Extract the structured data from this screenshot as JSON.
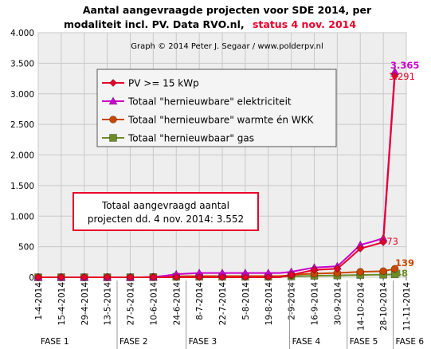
{
  "title": {
    "line1": "Aantal aangevraagde projecten voor SDE 2014, per",
    "line2_main": "modaliteit incl. PV. Data RVO.nl,",
    "line2_status": "status 4 nov. 2014"
  },
  "credit": "Graph © 2014 Peter J. Segaar / www.polderpv.nl",
  "summary_box": {
    "line1": "Totaal aangevraagd aantal",
    "line2": "projecten dd. 4 nov. 2014: 3.552"
  },
  "colors": {
    "pv": "#e8002a",
    "totaal_elektriciteit": "#cc00cc",
    "warmte_wkk": "#c84800",
    "gas": "#6e8c28",
    "plot_bg": "#eeeeee",
    "grid": "#c8c8c8",
    "title_status": "#e8002a",
    "summary_border": "#e8002a"
  },
  "chart_data": {
    "type": "line",
    "xlabel": "",
    "ylabel": "",
    "ylim": [
      0,
      4000
    ],
    "yticks": [
      0,
      500,
      1000,
      1500,
      2000,
      2500,
      3000,
      3500,
      4000
    ],
    "ytick_labels": [
      "0",
      "500",
      "1.000",
      "1.500",
      "2.000",
      "2.500",
      "3.000",
      "3.500",
      "4.000"
    ],
    "grid": true,
    "legend_position": "upper-left inside plot",
    "x": [
      "1-4-2014",
      "8-4-2014",
      "15-4-2014",
      "22-4-2014",
      "29-4-2014",
      "6-5-2014",
      "13-5-2014",
      "20-5-2014",
      "27-5-2014",
      "3-6-2014",
      "10-6-2014",
      "17-6-2014",
      "24-6-2014",
      "1-7-2014",
      "8-7-2014",
      "15-7-2014",
      "22-7-2014",
      "29-7-2014",
      "5-8-2014",
      "12-8-2014",
      "19-8-2014",
      "26-8-2014",
      "2-9-2014",
      "9-9-2014",
      "16-9-2014",
      "23-9-2014",
      "30-9-2014",
      "7-10-2014",
      "14-10-2014",
      "21-10-2014",
      "28-10-2014",
      "4-11-2014",
      "11-11-2014"
    ],
    "xtick_labels": [
      "1-4-2014",
      "15-4-2014",
      "29-4-2014",
      "13-5-2014",
      "27-5-2014",
      "10-6-2014",
      "24-6-2014",
      "8-7-2014",
      "22-7-2014",
      "5-8-2014",
      "19-8-2014",
      "2-9-2014",
      "16-9-2014",
      "30-9-2014",
      "14-10-2014",
      "28-10-2014",
      "11-11-2014"
    ],
    "series": [
      {
        "name": "PV >= 15 kWp",
        "color_key": "pv",
        "marker": "diamond",
        "values": [
          0,
          0,
          0,
          0,
          0,
          0,
          0,
          0,
          0,
          0,
          0,
          0,
          0,
          0,
          0,
          0,
          0,
          0,
          0,
          0,
          0,
          0,
          40,
          80,
          120,
          130,
          140,
          300,
          470,
          520,
          573,
          3291,
          null
        ]
      },
      {
        "name": "Totaal \"hernieuwbare\" elektriciteit",
        "color_key": "totaal_elektriciteit",
        "marker": "triangle",
        "values": [
          0,
          0,
          0,
          0,
          0,
          0,
          0,
          0,
          0,
          0,
          5,
          25,
          50,
          60,
          70,
          70,
          70,
          70,
          70,
          70,
          70,
          70,
          90,
          125,
          160,
          170,
          180,
          350,
          530,
          580,
          640,
          3365,
          null
        ]
      },
      {
        "name": "Totaal \"hernieuwbare\" warmte én WKK",
        "color_key": "warmte_wkk",
        "marker": "circle",
        "values": [
          0,
          0,
          0,
          0,
          0,
          0,
          0,
          0,
          0,
          0,
          5,
          10,
          15,
          20,
          20,
          20,
          20,
          20,
          20,
          20,
          20,
          20,
          35,
          50,
          60,
          65,
          70,
          80,
          90,
          95,
          100,
          139,
          null
        ]
      },
      {
        "name": "Totaal \"hernieuwbaar\" gas",
        "color_key": "gas",
        "marker": "square",
        "values": [
          0,
          0,
          0,
          0,
          0,
          0,
          0,
          0,
          0,
          0,
          2,
          5,
          8,
          10,
          10,
          10,
          10,
          10,
          10,
          10,
          10,
          10,
          15,
          20,
          25,
          28,
          30,
          35,
          38,
          40,
          42,
          48,
          null
        ]
      }
    ],
    "end_labels": [
      {
        "text": "3.365",
        "series": 1
      },
      {
        "text": "3.291",
        "series": 0
      },
      {
        "text": "573",
        "series": 0
      },
      {
        "text": "139",
        "series": 2
      },
      {
        "text": "48",
        "series": 3
      }
    ],
    "phases": [
      {
        "label": "FASE 1",
        "start": "1-4-2014"
      },
      {
        "label": "FASE 2",
        "start": "19-5-2014"
      },
      {
        "label": "FASE 3",
        "start": "30-6-2014"
      },
      {
        "label": "FASE 4",
        "start": "1-9-2014"
      },
      {
        "label": "FASE 5",
        "start": "6-10-2014"
      },
      {
        "label": "FASE 6",
        "start": "3-11-2014"
      }
    ]
  }
}
